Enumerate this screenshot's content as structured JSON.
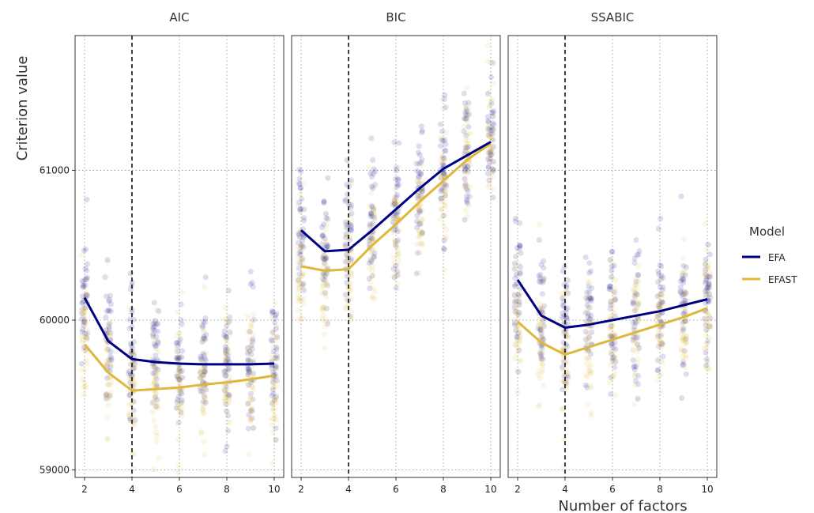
{
  "chart_data": {
    "type": "line",
    "xlabel": "Number of factors",
    "ylabel": "Criterion value",
    "xlim": [
      1.6,
      10.4
    ],
    "ylim": [
      58950,
      61900
    ],
    "x_ticks": [
      2,
      4,
      6,
      8,
      10
    ],
    "x_tick_labels": [
      "2",
      "4",
      "6",
      "8",
      "10"
    ],
    "y_ticks": [
      59000,
      60000,
      61000
    ],
    "y_tick_labels": [
      "59000",
      "60000",
      "61000"
    ],
    "reference_line_x": 4,
    "grid": true,
    "legend": {
      "title": "Model",
      "placement": "right"
    },
    "series_styles": [
      {
        "name": "EFA",
        "color": "#000080"
      },
      {
        "name": "EFAST",
        "color": "#DDB83B"
      }
    ],
    "x": [
      2,
      3,
      4,
      5,
      6,
      7,
      8,
      9,
      10
    ],
    "panels": [
      {
        "title": "AIC",
        "series": [
          {
            "name": "EFA",
            "values": [
              60150,
              59860,
              59740,
              59720,
              59710,
              59705,
              59705,
              59705,
              59710
            ]
          },
          {
            "name": "EFAST",
            "values": [
              59840,
              59650,
              59530,
              59540,
              59550,
              59570,
              59585,
              59605,
              59630
            ]
          }
        ]
      },
      {
        "title": "BIC",
        "series": [
          {
            "name": "EFA",
            "values": [
              60600,
              60460,
              60470,
              60600,
              60740,
              60880,
              61010,
              61100,
              61190
            ]
          },
          {
            "name": "EFAST",
            "values": [
              60360,
              60330,
              60340,
              60500,
              60640,
              60790,
              60930,
              61070,
              61180
            ]
          }
        ]
      },
      {
        "title": "SSABIC",
        "series": [
          {
            "name": "EFA",
            "values": [
              60270,
              60030,
              59950,
              59970,
              60000,
              60030,
              60060,
              60100,
              60140
            ]
          },
          {
            "name": "EFAST",
            "values": [
              59990,
              59850,
              59770,
              59820,
              59870,
              59920,
              59970,
              60020,
              60080
            ]
          }
        ]
      }
    ]
  }
}
